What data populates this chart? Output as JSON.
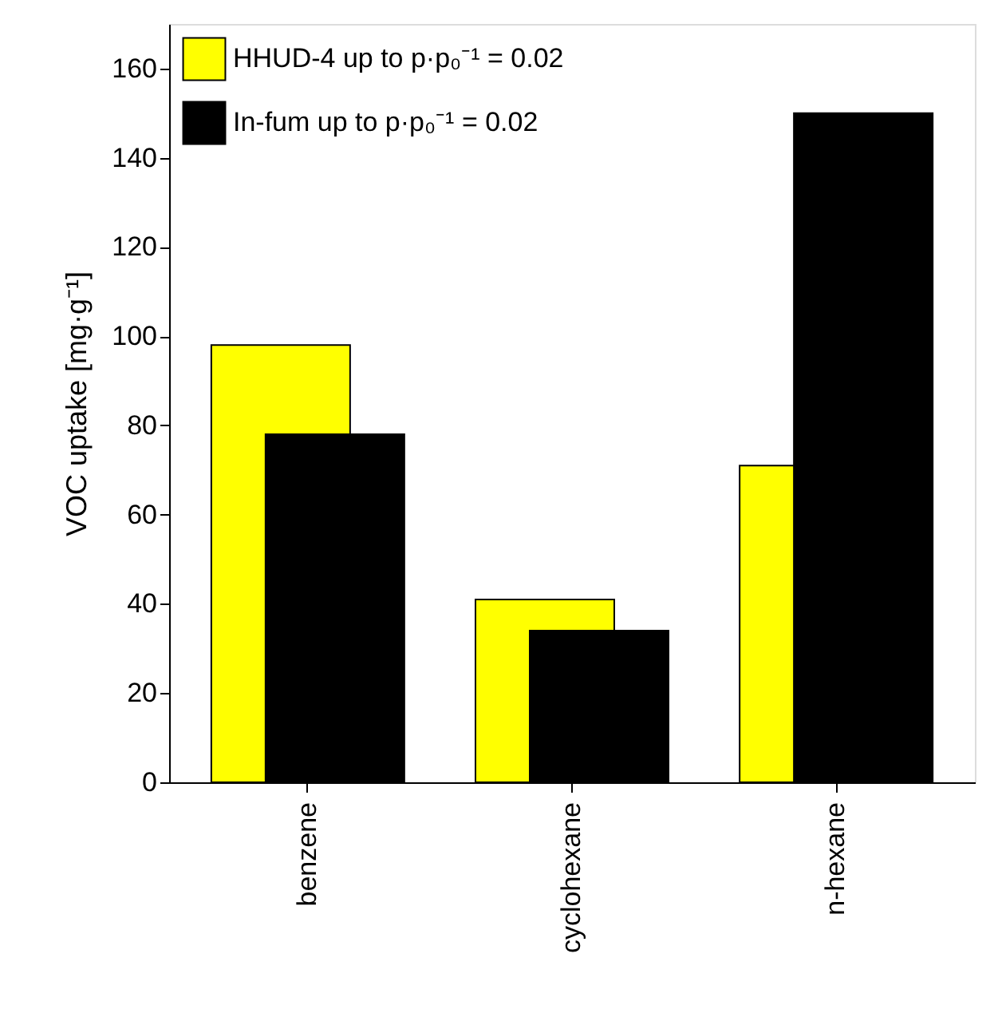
{
  "chart_data": {
    "type": "bar",
    "categories": [
      "benzene",
      "cyclohexane",
      "n-hexane"
    ],
    "series": [
      {
        "name": "HHUD-4 up to p·p₀⁻¹ = 0.02",
        "color": "#ffff00",
        "values": [
          98,
          41,
          71
        ]
      },
      {
        "name": "In-fum up to p·p₀⁻¹ = 0.02",
        "color": "#000000",
        "values": [
          78,
          34,
          150
        ]
      }
    ],
    "ylabel": "VOC uptake [mg·g⁻¹]",
    "ylim": [
      0,
      170
    ],
    "yticks": [
      0,
      20,
      40,
      60,
      80,
      100,
      120,
      140,
      160
    ],
    "legend": "top left",
    "grid": false
  }
}
